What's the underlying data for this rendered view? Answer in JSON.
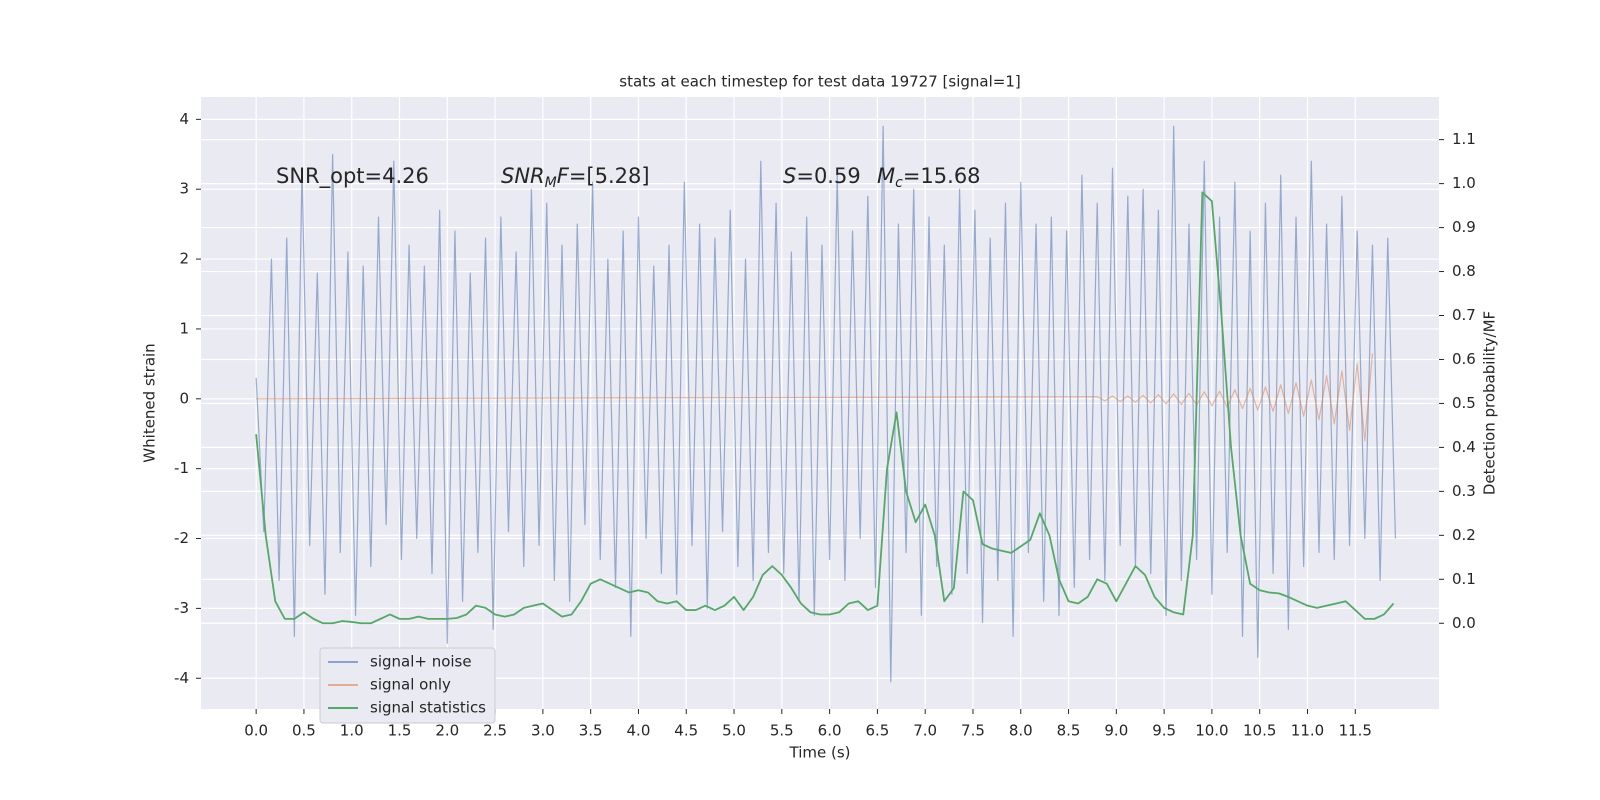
{
  "chart_data": {
    "type": "line",
    "title": "stats at each timestep for test data 19727 [signal=1]",
    "x_label": "Time (s)",
    "y_label": "Whitened strain",
    "y2_label": "Detection probability/MF",
    "annotations": [
      {
        "parts": [
          {
            "text": "SNR_opt=4.26"
          }
        ]
      },
      {
        "parts": [
          {
            "text": "SNR",
            "italic": true
          },
          {
            "text": "M",
            "italic": true,
            "sub": true
          },
          {
            "text": "F",
            "italic": true
          },
          {
            "text": "=[5.28]"
          }
        ]
      },
      {
        "parts": [
          {
            "text": "S",
            "italic": true
          },
          {
            "text": "=0.59"
          }
        ]
      },
      {
        "parts": [
          {
            "text": "M",
            "italic": true
          },
          {
            "text": "c",
            "italic": true,
            "sub": true
          },
          {
            "text": "=15.68"
          }
        ]
      }
    ],
    "xlim": [
      -0.577,
      12.376
    ],
    "ylim": [
      -4.44,
      4.32
    ],
    "y2lim": [
      -0.195,
      1.197
    ],
    "xticks": [
      {
        "value": 0,
        "label": "0.0"
      },
      0.5,
      {
        "value": 1,
        "label": "1.0"
      },
      1.5,
      {
        "value": 2,
        "label": "2.0"
      },
      2.5,
      {
        "value": 3,
        "label": "3.0"
      },
      3.5,
      {
        "value": 4,
        "label": "4.0"
      },
      4.5,
      {
        "value": 5,
        "label": "5.0"
      },
      5.5,
      {
        "value": 6,
        "label": "6.0"
      },
      6.5,
      {
        "value": 7,
        "label": "7.0"
      },
      7.5,
      {
        "value": 8,
        "label": "8.0"
      },
      8.5,
      {
        "value": 9,
        "label": "9.0"
      },
      9.5,
      {
        "value": 10,
        "label": "10.0"
      },
      10.5,
      {
        "value": 11,
        "label": "11.0"
      },
      11.5
    ],
    "yticks": [
      -4,
      -3,
      -2,
      -1,
      0,
      1,
      2,
      3,
      4
    ],
    "y2ticks": [
      {
        "value": 0,
        "label": "0.0"
      },
      0.1,
      0.2,
      0.3,
      0.4,
      0.5,
      0.6,
      0.7,
      0.8,
      0.9,
      {
        "value": 1,
        "label": "1.0"
      },
      1.1
    ],
    "grid": true,
    "legend": "lower left",
    "series": [
      {
        "name": "signal+ noise",
        "color": "#4c72b0",
        "x": [
          0,
          0.08,
          0.16,
          0.24,
          0.32,
          0.4,
          0.48,
          0.56,
          0.64,
          0.72,
          0.8,
          0.88,
          0.96,
          1.04,
          1.12,
          1.2,
          1.28,
          1.36,
          1.44,
          1.52,
          1.6,
          1.68,
          1.76,
          1.84,
          1.92,
          2,
          2.08,
          2.16,
          2.24,
          2.32,
          2.4,
          2.48,
          2.56,
          2.64,
          2.72,
          2.8,
          2.88,
          2.96,
          3.04,
          3.12,
          3.2,
          3.28,
          3.36,
          3.44,
          3.52,
          3.6,
          3.68,
          3.76,
          3.84,
          3.92,
          4,
          4.08,
          4.16,
          4.24,
          4.32,
          4.4,
          4.48,
          4.56,
          4.64,
          4.72,
          4.8,
          4.88,
          4.96,
          5.04,
          5.12,
          5.2,
          5.28,
          5.36,
          5.44,
          5.52,
          5.6,
          5.68,
          5.76,
          5.84,
          5.92,
          6,
          6.08,
          6.16,
          6.24,
          6.32,
          6.4,
          6.48,
          6.56,
          6.64,
          6.72,
          6.8,
          6.88,
          6.96,
          7.04,
          7.12,
          7.2,
          7.28,
          7.36,
          7.44,
          7.52,
          7.6,
          7.68,
          7.76,
          7.84,
          7.92,
          8,
          8.08,
          8.16,
          8.24,
          8.32,
          8.4,
          8.48,
          8.56,
          8.64,
          8.72,
          8.8,
          8.88,
          8.96,
          9.04,
          9.12,
          9.2,
          9.28,
          9.36,
          9.44,
          9.52,
          9.6,
          9.68,
          9.76,
          9.84,
          9.92,
          10,
          10.08,
          10.16,
          10.24,
          10.32,
          10.4,
          10.48,
          10.56,
          10.64,
          10.72,
          10.8,
          10.88,
          10.96,
          11.04,
          11.12,
          11.2,
          11.28,
          11.36,
          11.44,
          11.52,
          11.6,
          11.68,
          11.76,
          11.84,
          11.92
        ],
        "values": [
          0.3,
          -1.9,
          2.0,
          -2.6,
          2.3,
          -3.4,
          3.3,
          -2.1,
          1.8,
          -2.8,
          3.5,
          -2.2,
          2.1,
          -3.1,
          1.9,
          -2.4,
          2.6,
          -1.8,
          3.4,
          -2.3,
          2.2,
          -2.0,
          1.9,
          -2.5,
          2.7,
          -3.5,
          2.4,
          -2.9,
          1.8,
          -2.2,
          2.3,
          -3.3,
          2.6,
          -1.9,
          2.1,
          -2.4,
          3.0,
          -2.1,
          2.8,
          -2.6,
          2.2,
          -2.9,
          2.5,
          -1.8,
          3.1,
          -2.3,
          2.0,
          -2.7,
          2.4,
          -3.4,
          2.6,
          -2.0,
          1.9,
          -2.5,
          2.2,
          -2.8,
          3.1,
          -2.1,
          2.5,
          -3.0,
          2.3,
          -1.9,
          2.7,
          -2.4,
          2.0,
          -2.6,
          3.4,
          -2.2,
          2.8,
          -2.5,
          2.1,
          -2.9,
          2.6,
          -3.1,
          2.2,
          -2.3,
          3.2,
          -2.6,
          2.4,
          -2.0,
          2.9,
          -2.7,
          3.9,
          -4.05,
          2.5,
          -2.2,
          3.0,
          -3.1,
          2.6,
          -2.4,
          2.2,
          -2.8,
          3.0,
          -2.5,
          2.7,
          -3.2,
          2.3,
          -2.6,
          2.8,
          -3.4,
          3.1,
          -2.2,
          2.5,
          -2.9,
          2.6,
          -3.1,
          2.4,
          -2.7,
          3.2,
          -2.3,
          2.8,
          -2.6,
          3.3,
          -2.1,
          2.9,
          -2.4,
          3.0,
          -2.5,
          2.7,
          -3.1,
          3.9,
          -2.6,
          2.5,
          -2.3,
          3.4,
          -2.8,
          2.6,
          -2.2,
          3.1,
          -3.4,
          2.4,
          -3.7,
          2.8,
          -2.5,
          3.2,
          -3.3,
          2.6,
          -2.4,
          3.4,
          -2.2,
          2.5,
          -2.3,
          2.9,
          -2.1,
          2.4,
          -2.0,
          2.2,
          -2.6,
          2.3,
          -2.0
        ]
      },
      {
        "name": "signal only",
        "color": "#dd8452",
        "x": [
          0,
          8.8,
          8.88,
          8.96,
          9.04,
          9.12,
          9.2,
          9.28,
          9.36,
          9.44,
          9.52,
          9.6,
          9.68,
          9.76,
          9.84,
          9.92,
          10,
          10.08,
          10.16,
          10.24,
          10.32,
          10.4,
          10.48,
          10.56,
          10.64,
          10.72,
          10.8,
          10.88,
          10.96,
          11.04,
          11.12,
          11.2,
          11.28,
          11.36,
          11.44,
          11.52,
          11.6,
          11.68
        ],
        "values": [
          0,
          0.03,
          -0.03,
          0.04,
          -0.04,
          0.04,
          -0.05,
          0.05,
          -0.06,
          0.06,
          -0.07,
          0.07,
          -0.08,
          0.08,
          -0.09,
          0.1,
          -0.1,
          0.11,
          -0.12,
          0.13,
          -0.14,
          0.15,
          -0.16,
          0.17,
          -0.18,
          0.2,
          -0.21,
          0.23,
          -0.25,
          0.27,
          -0.3,
          0.33,
          -0.36,
          0.4,
          -0.45,
          0.5,
          -0.6,
          0.65
        ]
      },
      {
        "name": "signal statistics",
        "color": "#55a868",
        "axis": "y2",
        "x": [
          0,
          0.1,
          0.2,
          0.3,
          0.4,
          0.5,
          0.6,
          0.7,
          0.8,
          0.9,
          1,
          1.1,
          1.2,
          1.3,
          1.4,
          1.5,
          1.6,
          1.7,
          1.8,
          1.9,
          2,
          2.1,
          2.2,
          2.3,
          2.4,
          2.5,
          2.6,
          2.7,
          2.8,
          2.9,
          3,
          3.1,
          3.2,
          3.3,
          3.4,
          3.5,
          3.6,
          3.7,
          3.8,
          3.9,
          4,
          4.1,
          4.2,
          4.3,
          4.4,
          4.5,
          4.6,
          4.7,
          4.8,
          4.9,
          5,
          5.1,
          5.2,
          5.3,
          5.4,
          5.5,
          5.6,
          5.7,
          5.8,
          5.9,
          6,
          6.1,
          6.2,
          6.3,
          6.4,
          6.5,
          6.6,
          6.7,
          6.8,
          6.9,
          7,
          7.1,
          7.2,
          7.3,
          7.4,
          7.5,
          7.6,
          7.7,
          7.8,
          7.9,
          8,
          8.1,
          8.2,
          8.3,
          8.4,
          8.5,
          8.6,
          8.7,
          8.8,
          8.9,
          9,
          9.1,
          9.2,
          9.3,
          9.4,
          9.5,
          9.6,
          9.7,
          9.8,
          9.9,
          10,
          10.1,
          10.2,
          10.3,
          10.4,
          10.5,
          10.6,
          10.7,
          10.8,
          10.9,
          11,
          11.1,
          11.2,
          11.3,
          11.4,
          11.5,
          11.6,
          11.7,
          11.8,
          11.9
        ],
        "values": [
          0.43,
          0.2,
          0.05,
          0.01,
          0.01,
          0.025,
          0.01,
          0.0,
          0.0,
          0.005,
          0.003,
          0.0,
          0.0,
          0.01,
          0.02,
          0.01,
          0.01,
          0.015,
          0.01,
          0.01,
          0.01,
          0.012,
          0.02,
          0.04,
          0.035,
          0.02,
          0.015,
          0.02,
          0.035,
          0.04,
          0.045,
          0.03,
          0.015,
          0.02,
          0.05,
          0.09,
          0.1,
          0.09,
          0.08,
          0.07,
          0.075,
          0.07,
          0.05,
          0.045,
          0.05,
          0.03,
          0.03,
          0.04,
          0.03,
          0.04,
          0.06,
          0.03,
          0.06,
          0.11,
          0.13,
          0.11,
          0.08,
          0.045,
          0.025,
          0.02,
          0.02,
          0.025,
          0.045,
          0.05,
          0.03,
          0.04,
          0.35,
          0.48,
          0.3,
          0.23,
          0.27,
          0.2,
          0.05,
          0.08,
          0.3,
          0.28,
          0.18,
          0.17,
          0.165,
          0.16,
          0.175,
          0.19,
          0.25,
          0.2,
          0.1,
          0.05,
          0.045,
          0.06,
          0.1,
          0.09,
          0.05,
          0.09,
          0.13,
          0.11,
          0.06,
          0.035,
          0.025,
          0.02,
          0.2,
          0.98,
          0.96,
          0.7,
          0.4,
          0.2,
          0.09,
          0.075,
          0.07,
          0.068,
          0.06,
          0.05,
          0.04,
          0.035,
          0.04,
          0.045,
          0.05,
          0.03,
          0.01,
          0.01,
          0.02,
          0.045
        ]
      }
    ]
  }
}
